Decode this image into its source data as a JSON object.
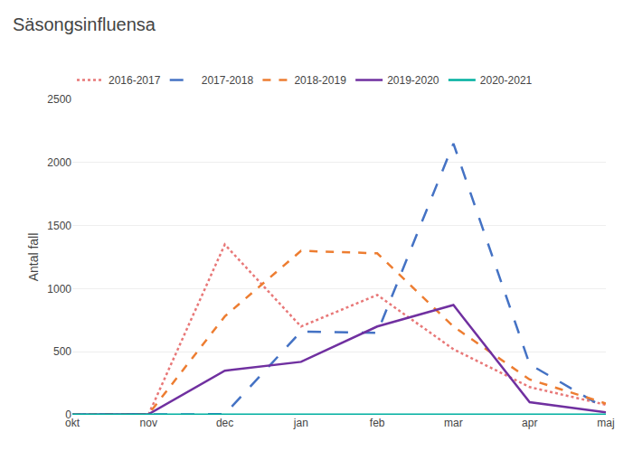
{
  "chart_data": {
    "type": "line",
    "title": "Säsongsinfluensa",
    "ylabel": "Antal fall",
    "categories": [
      "okt",
      "nov",
      "dec",
      "jan",
      "feb",
      "mar",
      "apr",
      "maj"
    ],
    "series": [
      {
        "name": "2016-2017",
        "color": "#e87878",
        "line_style": "dotted",
        "values": [
          2,
          3,
          1350,
          700,
          950,
          520,
          220,
          80
        ]
      },
      {
        "name": "2017-2018",
        "color": "#4472c4",
        "line_style": "longdashed",
        "values": [
          2,
          2,
          5,
          660,
          650,
          2150,
          400,
          50
        ]
      },
      {
        "name": "2018-2019",
        "color": "#ed7d31",
        "line_style": "dashed",
        "values": [
          2,
          5,
          780,
          1300,
          1280,
          700,
          280,
          90
        ]
      },
      {
        "name": "2019-2020",
        "color": "#7030a0",
        "line_style": "solid",
        "values": [
          2,
          5,
          350,
          420,
          700,
          870,
          100,
          20
        ]
      },
      {
        "name": "2020-2021",
        "color": "#00b0a0",
        "line_style": "solid",
        "values": [
          2,
          2,
          2,
          2,
          2,
          2,
          2,
          2
        ]
      }
    ],
    "ylim": [
      0,
      2500
    ],
    "yticks": [
      0,
      500,
      1000,
      1500,
      2000,
      2500
    ],
    "grid": true,
    "legend": "top"
  }
}
